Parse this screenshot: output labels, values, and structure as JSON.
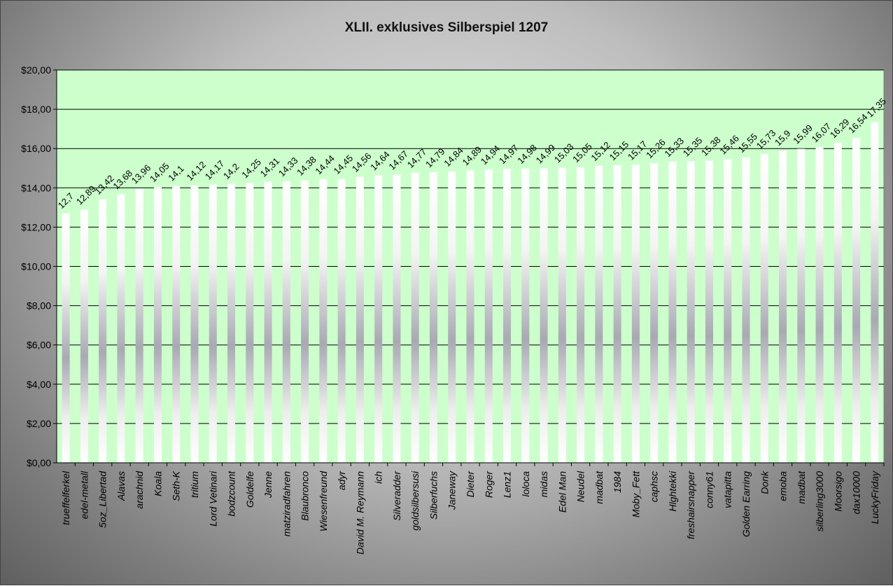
{
  "chart_data": {
    "type": "bar",
    "title": "XLII. exklusives Silberspiel 1207",
    "xlabel": "",
    "ylabel": "",
    "ylim": [
      0,
      20
    ],
    "y_tick_labels": [
      "$0,00",
      "$2,00",
      "$4,00",
      "$6,00",
      "$8,00",
      "$10,00",
      "$12,00",
      "$14,00",
      "$16,00",
      "$18,00",
      "$20,00"
    ],
    "grid": true,
    "legend": "none",
    "plot_background": "#ccffcc",
    "categories": [
      "trueffelferkel",
      "edel-metall",
      "5oz_Libertad",
      "Alavas",
      "arachnid",
      "Koala",
      "Seth-K",
      "tritium",
      "Lord Vetinari",
      "bodzcount",
      "Goldelfe",
      "Jenne",
      "matziradfahren",
      "Blaubronco",
      "Wiesenfreund",
      "adyr",
      "David M. Reymann",
      "ich",
      "Silveradder",
      "goldsilbersusi",
      "Silberfuchs",
      "Janeway",
      "Dieter",
      "Roger",
      "Lenz1",
      "loloca",
      "midas",
      "Edel Man",
      "Neudel",
      "madbat",
      "1984",
      "Moby_Fett",
      "caphsc",
      "Hlghtekki",
      "freshairsnapper",
      "conny61",
      "vatapitta",
      "Golden Earring",
      "Donk",
      "emoba",
      "madbat",
      "silberling3000",
      "Moorsigo",
      "dax10000",
      "LuckyFriday"
    ],
    "values": [
      12.7,
      12.89,
      13.42,
      13.68,
      13.96,
      14.05,
      14.1,
      14.12,
      14.17,
      14.2,
      14.25,
      14.31,
      14.33,
      14.38,
      14.44,
      14.45,
      14.56,
      14.64,
      14.67,
      14.77,
      14.79,
      14.84,
      14.89,
      14.94,
      14.97,
      14.98,
      14.99,
      15.03,
      15.05,
      15.12,
      15.15,
      15.17,
      15.26,
      15.33,
      15.35,
      15.38,
      15.46,
      15.55,
      15.73,
      15.9,
      15.99,
      16.07,
      16.29,
      16.54,
      17.35
    ],
    "data_labels": [
      "12,7",
      "12,89",
      "13,42",
      "13,68",
      "13,96",
      "14,05",
      "14,1",
      "14,12",
      "14,17",
      "14,2",
      "14,25",
      "14,31",
      "14,33",
      "14,38",
      "14,44",
      "14,45",
      "14,56",
      "14,64",
      "14,67",
      "14,77",
      "14,79",
      "14,84",
      "14,89",
      "14,94",
      "14,97",
      "14,98",
      "14,99",
      "15,03",
      "15,05",
      "15,12",
      "15,15",
      "15,17",
      "15,26",
      "15,33",
      "15,35",
      "15,38",
      "15,46",
      "15,55",
      "15,73",
      "15,9",
      "15,99",
      "16,07",
      "16,29",
      "16,54",
      "17,35"
    ]
  }
}
